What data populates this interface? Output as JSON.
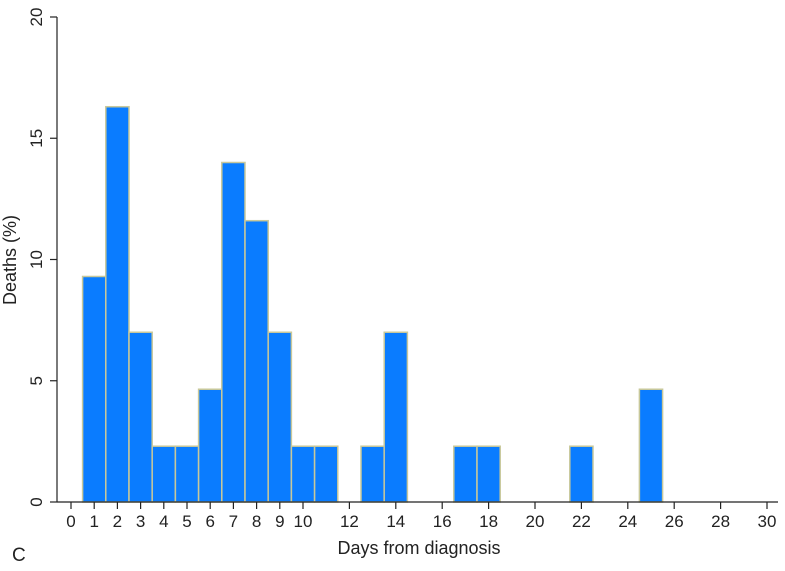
{
  "panel_label": "C",
  "chart_data": {
    "type": "bar",
    "xlabel": "Days from diagnosis",
    "ylabel": "Deaths (%)",
    "xlim": [
      -0.5,
      30.5
    ],
    "ylim": [
      0,
      20
    ],
    "xticks": [
      0,
      1,
      2,
      3,
      4,
      5,
      6,
      7,
      8,
      9,
      10,
      12,
      14,
      16,
      18,
      20,
      22,
      24,
      26,
      28,
      30
    ],
    "yticks": [
      0,
      5,
      10,
      15,
      20
    ],
    "bar_width": 1,
    "x": [
      1,
      2,
      3,
      4,
      5,
      6,
      7,
      8,
      9,
      10,
      11,
      13,
      14,
      17,
      18,
      22,
      25
    ],
    "values": [
      9.3,
      16.3,
      7.0,
      2.3,
      2.3,
      4.65,
      14.0,
      11.6,
      7.0,
      2.3,
      2.3,
      2.3,
      7.0,
      2.3,
      2.3,
      2.3,
      4.65
    ],
    "colors": {
      "bar_fill": "#0a7cff",
      "bar_edge": "#c8c89a",
      "axis": "#222222"
    },
    "grid": false
  }
}
